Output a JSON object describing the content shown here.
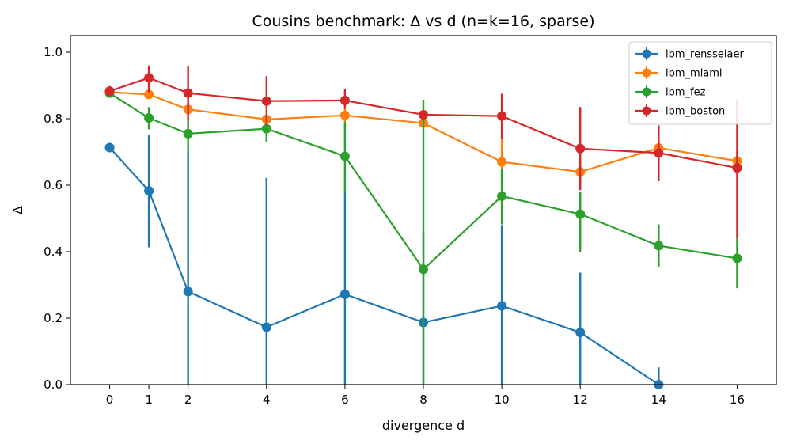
{
  "chart_data": {
    "type": "line",
    "title": "Cousins benchmark: Δ vs d (n=k=16, sparse)",
    "xlabel": "divergence d",
    "ylabel": "Δ",
    "xlim": [
      -1.0,
      17.0
    ],
    "ylim": [
      0.0,
      1.05
    ],
    "xticks": [
      0,
      1,
      2,
      4,
      6,
      8,
      10,
      12,
      14,
      16
    ],
    "yticks": [
      0.0,
      0.2,
      0.4,
      0.6,
      0.8,
      1.0
    ],
    "ytick_labels": [
      "0.0",
      "0.2",
      "0.4",
      "0.6",
      "0.8",
      "1.0"
    ],
    "grid": false,
    "legend_position": "top-right",
    "series": [
      {
        "name": "ibm_rensselaer",
        "color": "#1f77b4",
        "x": [
          0,
          1,
          2,
          4,
          6,
          8,
          10,
          12,
          14
        ],
        "y": [
          0.713,
          0.583,
          0.28,
          0.173,
          0.272,
          0.187,
          0.237,
          0.157,
          0.0
        ],
        "err_low": [
          0.713,
          0.413,
          0.0,
          0.0,
          0.0,
          0.0,
          0.0,
          0.0,
          0.0
        ],
        "err_high": [
          0.713,
          0.752,
          0.705,
          0.622,
          0.58,
          0.46,
          0.48,
          0.337,
          0.052
        ]
      },
      {
        "name": "ibm_miami",
        "color": "#ff7f0e",
        "x": [
          0,
          1,
          2,
          4,
          6,
          8,
          10,
          12,
          14,
          16
        ],
        "y": [
          0.88,
          0.873,
          0.828,
          0.798,
          0.81,
          0.787,
          0.67,
          0.64,
          0.712,
          0.673
        ],
        "err_low": [
          0.88,
          0.873,
          0.78,
          0.798,
          0.77,
          0.787,
          0.6,
          0.6,
          0.7,
          0.65
        ],
        "err_high": [
          0.88,
          0.873,
          0.86,
          0.798,
          0.85,
          0.787,
          0.74,
          0.68,
          0.725,
          0.7
        ]
      },
      {
        "name": "ibm_fez",
        "color": "#2ca02c",
        "x": [
          0,
          1,
          2,
          4,
          6,
          8,
          10,
          12,
          14,
          16
        ],
        "y": [
          0.877,
          0.802,
          0.755,
          0.77,
          0.687,
          0.347,
          0.567,
          0.513,
          0.418,
          0.38
        ],
        "err_low": [
          0.877,
          0.768,
          0.7,
          0.73,
          0.578,
          0.0,
          0.482,
          0.398,
          0.355,
          0.29
        ],
        "err_high": [
          0.877,
          0.835,
          0.8,
          0.805,
          0.79,
          0.857,
          0.65,
          0.58,
          0.482,
          0.44
        ]
      },
      {
        "name": "ibm_boston",
        "color": "#d62728",
        "x": [
          0,
          1,
          2,
          4,
          6,
          8,
          10,
          12,
          14,
          16
        ],
        "y": [
          0.883,
          0.923,
          0.877,
          0.853,
          0.855,
          0.812,
          0.808,
          0.71,
          0.697,
          0.652
        ],
        "err_low": [
          0.873,
          0.88,
          0.795,
          0.78,
          0.83,
          0.812,
          0.74,
          0.585,
          0.612,
          0.44
        ],
        "err_high": [
          0.898,
          0.96,
          0.958,
          0.928,
          0.888,
          0.812,
          0.875,
          0.835,
          0.78,
          0.858
        ]
      }
    ]
  }
}
